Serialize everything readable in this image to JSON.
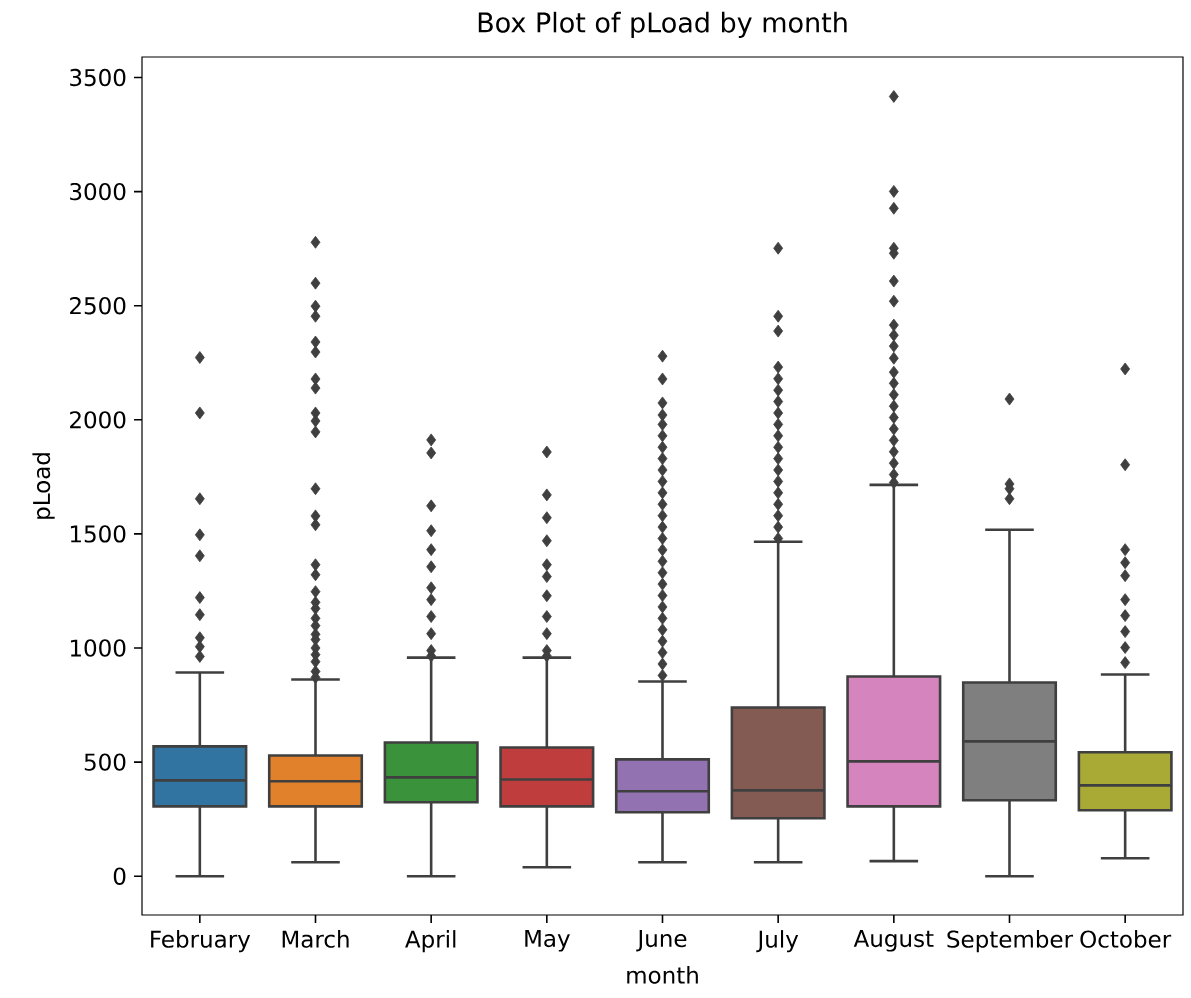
{
  "chart_data": {
    "type": "box",
    "title": "Box Plot of pLoad by month",
    "xlabel": "month",
    "ylabel": "pLoad",
    "categories": [
      "February",
      "March",
      "April",
      "May",
      "June",
      "July",
      "August",
      "September",
      "October"
    ],
    "colors": [
      "#3274a1",
      "#e1812c",
      "#3a923a",
      "#c03d3e",
      "#9372b2",
      "#845b53",
      "#d684bd",
      "#7f7f7f",
      "#a9aa35"
    ],
    "boxes": [
      {
        "low": 0,
        "q1": 306,
        "median": 420,
        "q3": 569,
        "high": 893,
        "outliers": [
          2273,
          2030,
          1654,
          1496,
          1404,
          1221,
          1146,
          1045,
          1006,
          963
        ]
      },
      {
        "low": 61,
        "q1": 306,
        "median": 416,
        "q3": 529,
        "high": 862,
        "outliers": [
          2778,
          2599,
          2498,
          2454,
          2341,
          2297,
          2179,
          2139,
          2030,
          1995,
          1947,
          1698,
          1579,
          1540,
          1365,
          1321,
          1247,
          1200,
          1173,
          1130,
          1098,
          1060,
          1037,
          1000,
          971,
          940,
          897,
          871
        ]
      },
      {
        "low": 0,
        "q1": 324,
        "median": 433,
        "q3": 586,
        "high": 958,
        "outliers": [
          1912,
          1855,
          1623,
          1514,
          1431,
          1356,
          1264,
          1212,
          1138,
          1063,
          989,
          965
        ]
      },
      {
        "low": 39,
        "q1": 306,
        "median": 424,
        "q3": 564,
        "high": 958,
        "outliers": [
          1859,
          1671,
          1571,
          1470,
          1365,
          1313,
          1229,
          1138,
          1063,
          989,
          965
        ]
      },
      {
        "low": 61,
        "q1": 280,
        "median": 372,
        "q3": 512,
        "high": 853,
        "outliers": [
          2279,
          2179,
          2074,
          2021,
          1980,
          1930,
          1880,
          1830,
          1780,
          1730,
          1680,
          1630,
          1580,
          1530,
          1480,
          1430,
          1380,
          1330,
          1280,
          1230,
          1180,
          1130,
          1080,
          1030,
          980,
          930,
          880
        ]
      },
      {
        "low": 61,
        "q1": 254,
        "median": 376,
        "q3": 739,
        "high": 1466,
        "outliers": [
          2752,
          2454,
          2389,
          2231,
          2180,
          2130,
          2080,
          2030,
          1980,
          1930,
          1880,
          1830,
          1780,
          1730,
          1680,
          1630,
          1580,
          1530,
          1480
        ]
      },
      {
        "low": 66,
        "q1": 306,
        "median": 503,
        "q3": 875,
        "high": 1715,
        "outliers": [
          3417,
          3001,
          2927,
          2752,
          2730,
          2608,
          2520,
          2415,
          2371,
          2323,
          2270,
          2209,
          2160,
          2110,
          2060,
          2010,
          1960,
          1910,
          1860,
          1810,
          1760,
          1725
        ]
      },
      {
        "low": 0,
        "q1": 333,
        "median": 591,
        "q3": 849,
        "high": 1518,
        "outliers": [
          2091,
          1719,
          1698,
          1654
        ]
      },
      {
        "low": 79,
        "q1": 289,
        "median": 398,
        "q3": 543,
        "high": 884,
        "outliers": [
          2223,
          1803,
          1431,
          1374,
          1317,
          1212,
          1142,
          1072,
          1002,
          936
        ]
      }
    ],
    "marker": "diamond",
    "ylim": [
      -170,
      3590
    ],
    "yticks": [
      0,
      500,
      1000,
      1500,
      2000,
      2500,
      3000,
      3500
    ]
  }
}
